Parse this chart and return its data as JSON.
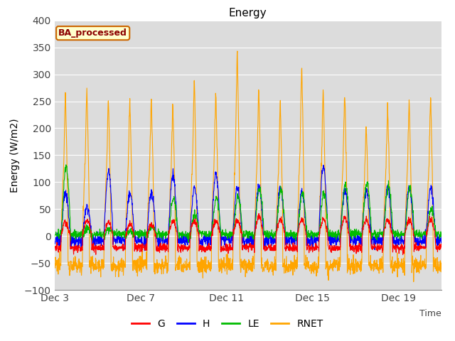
{
  "title": "Energy",
  "xlabel": "Time",
  "ylabel": "Energy (W/m2)",
  "ylim": [
    -100,
    400
  ],
  "ytick_vals": [
    -100,
    -50,
    0,
    50,
    100,
    150,
    200,
    250,
    300,
    350,
    400
  ],
  "xtick_labels": [
    "Dec 3",
    "Dec 7",
    "Dec 11",
    "Dec 15",
    "Dec 19"
  ],
  "xtick_positions": [
    0,
    4,
    8,
    12,
    16
  ],
  "xlim": [
    0,
    18
  ],
  "colors": {
    "G": "#ff0000",
    "H": "#0000ff",
    "LE": "#00bb00",
    "RNET": "#ffa500"
  },
  "legend_label": "BA_processed",
  "plot_bg": "#dcdcdc",
  "linewidth": 0.8
}
